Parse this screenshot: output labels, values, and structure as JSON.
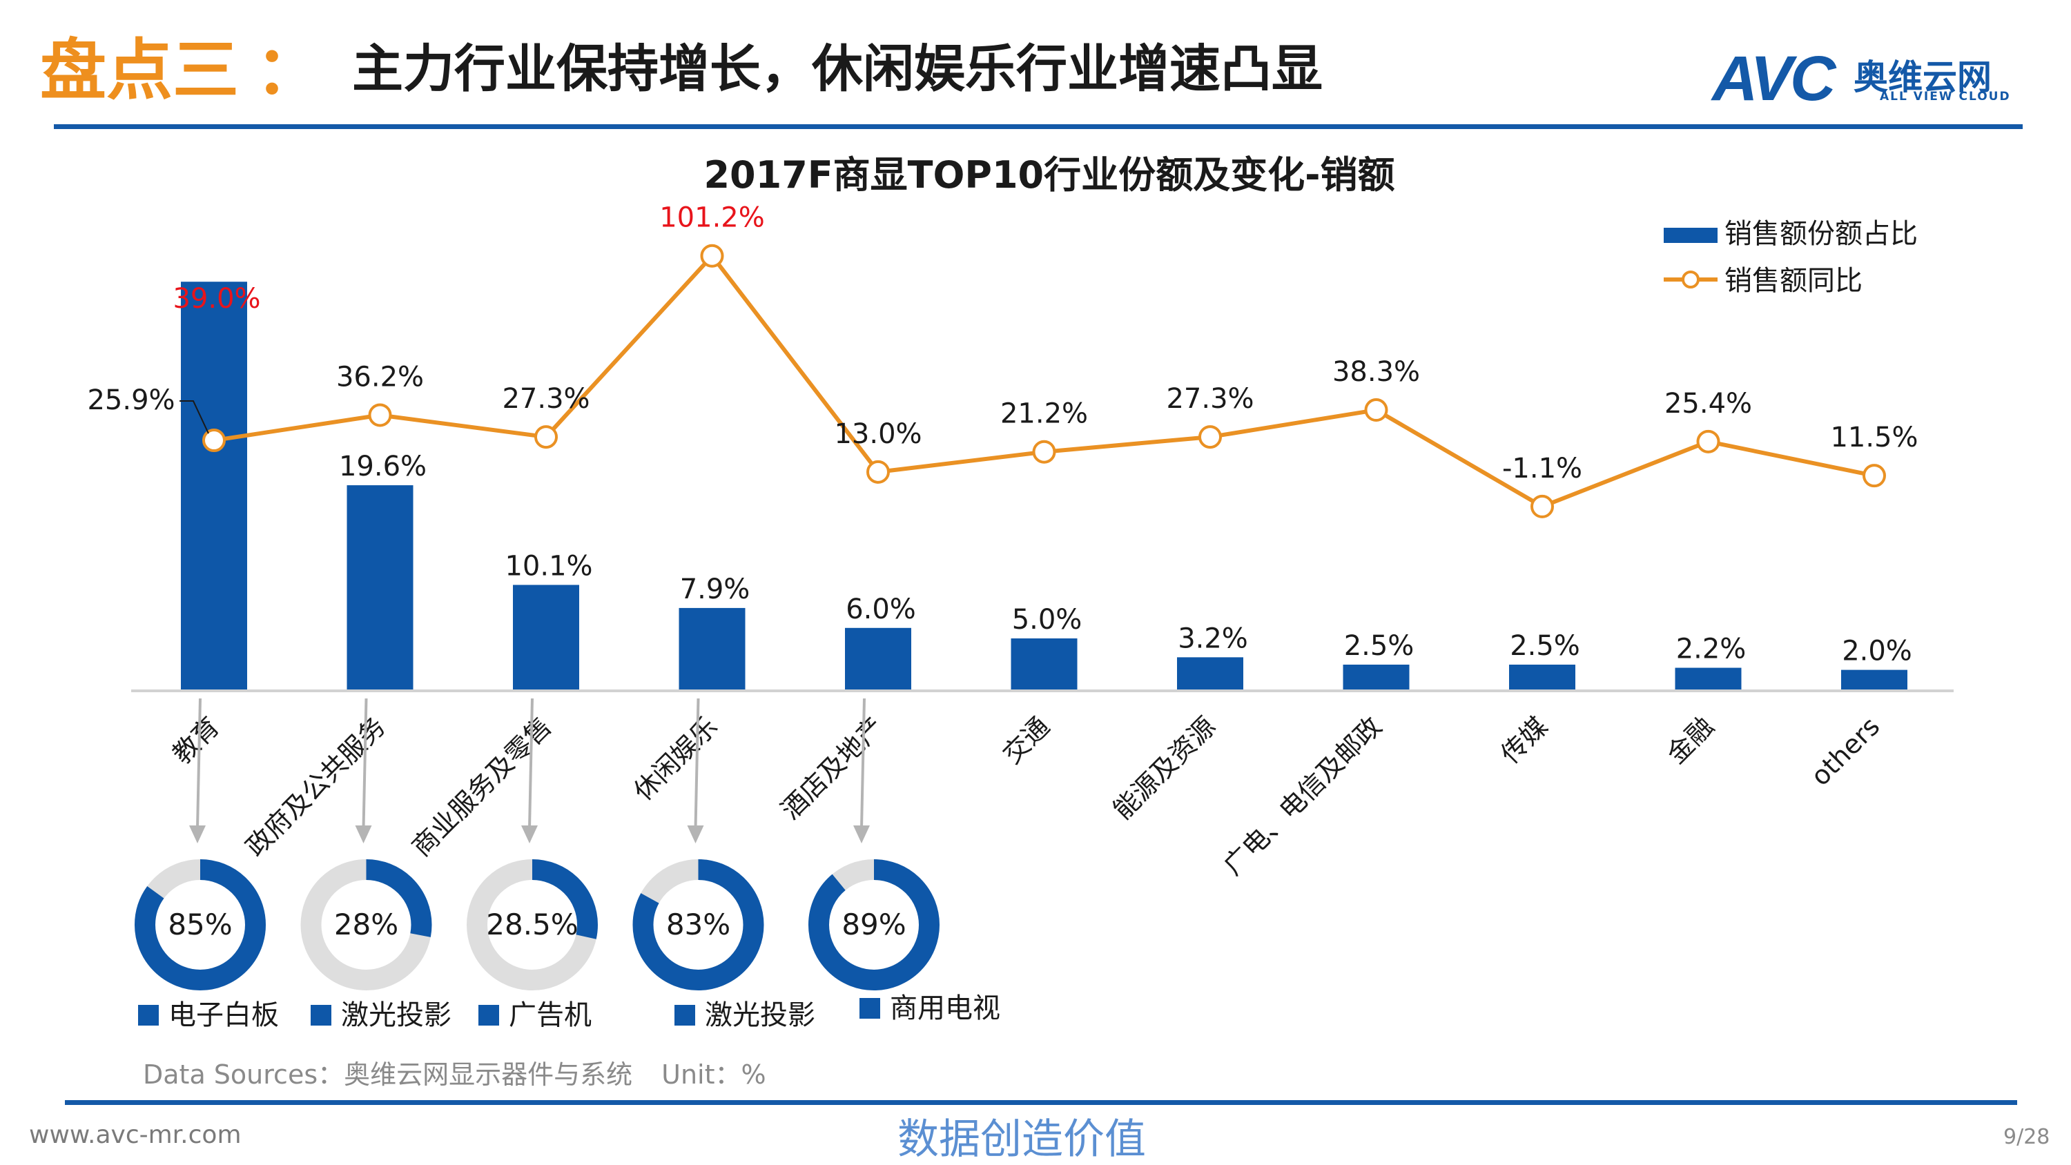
{
  "header": {
    "title_accent": "盘点三",
    "title_colon": "：",
    "title_main": "主力行业保持增长，休闲娱乐行业增速凸显"
  },
  "logo": {
    "brand": "AVC",
    "cn": "奥维云网",
    "en": "ALL VIEW CLOUD"
  },
  "chart_data": {
    "type": "bar",
    "title": "2017F商显TOP10行业份额及变化-销额",
    "categories": [
      "教育",
      "政府及公共服务",
      "商业服务及零售",
      "休闲娱乐",
      "酒店及地产",
      "交通",
      "能源及资源",
      "广电、电信及邮政",
      "传媒",
      "金融",
      "others"
    ],
    "series": [
      {
        "name": "销售额份额占比",
        "kind": "bar",
        "values": [
          39.0,
          19.6,
          10.1,
          7.9,
          6.0,
          5.0,
          3.2,
          2.5,
          2.5,
          2.2,
          2.0
        ],
        "labels": [
          "39.0%",
          "19.6%",
          "10.1%",
          "7.9%",
          "6.0%",
          "5.0%",
          "3.2%",
          "2.5%",
          "2.5%",
          "2.2%",
          "2.0%"
        ]
      },
      {
        "name": "销售额同比",
        "kind": "line",
        "values": [
          25.9,
          36.2,
          27.3,
          101.2,
          13.0,
          21.2,
          27.3,
          38.3,
          -1.1,
          25.4,
          11.5
        ],
        "labels": [
          "25.9%",
          "36.2%",
          "27.3%",
          "101.2%",
          "13.0%",
          "21.2%",
          "27.3%",
          "38.3%",
          "-1.1%",
          "25.4%",
          "11.5%"
        ]
      }
    ],
    "highlight_color": "#E8141B",
    "highlight": {
      "bar": [
        0
      ],
      "line": [
        3
      ]
    },
    "legend_position": "top-right",
    "grid": false,
    "colors": {
      "bar": "#0E57A8",
      "line": "#EA9123"
    }
  },
  "donuts": [
    {
      "category": "教育",
      "value": 85,
      "label": "85%",
      "legend": "电子白板"
    },
    {
      "category": "政府及公共服务",
      "value": 28,
      "label": "28%",
      "legend": "激光投影"
    },
    {
      "category": "商业服务及零售",
      "value": 28.5,
      "label": "28.5%",
      "legend": "广告机"
    },
    {
      "category": "休闲娱乐",
      "value": 83,
      "label": "83%",
      "legend": "激光投影"
    },
    {
      "category": "酒店及地产",
      "value": 89,
      "label": "89%",
      "legend": "商用电视"
    }
  ],
  "donut_colors": {
    "fill": "#0E57A8",
    "track": "#DEDEDE"
  },
  "footer": {
    "source": "Data Sources：奥维云网显示器件与系统",
    "unit": "Unit：%",
    "url": "www.avc-mr.com",
    "slogan": "数据创造价值",
    "page": "9/28"
  }
}
